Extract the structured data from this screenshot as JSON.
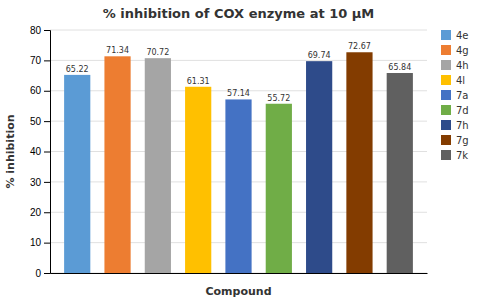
{
  "chart_data": {
    "type": "bar",
    "title": "% inhibition of COX enzyme at 10 μM",
    "xlabel": "Compound",
    "ylabel": "% inhibition",
    "categories": [
      "4e",
      "4g",
      "4h",
      "4l",
      "7a",
      "7d",
      "7h",
      "7g",
      "7k"
    ],
    "values": [
      65.22,
      71.34,
      70.72,
      61.31,
      57.14,
      55.72,
      69.74,
      72.67,
      65.84
    ],
    "colors": [
      "#5B9BD5",
      "#ED7D31",
      "#A5A5A5",
      "#FFC000",
      "#4472C4",
      "#70AD47",
      "#2E4B8A",
      "#833C00",
      "#606060"
    ],
    "ylim": [
      0,
      80
    ],
    "yticks": [
      0,
      10,
      20,
      30,
      40,
      50,
      60,
      70,
      80
    ],
    "grid": true,
    "legend": "right",
    "data_labels": true,
    "tick_labels": "y"
  }
}
